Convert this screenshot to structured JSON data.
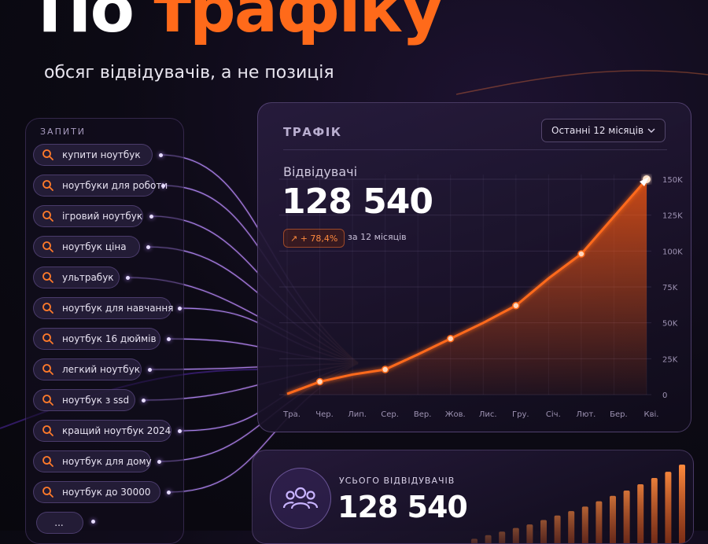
{
  "hero": {
    "title_white": "По",
    "title_orange": "трафіку",
    "subtitle": "обсяг відвідувачів, а не позиція"
  },
  "queries": {
    "title": "ЗАПИТИ",
    "items": [
      "купити ноутбук",
      "ноутбуки для роботи",
      "ігровий ноутбук",
      "ноутбук ціна",
      "ультрабук",
      "ноутбук для навчання",
      "ноутбук 16 дюймів",
      "легкий ноутбук",
      "ноутбук з ssd",
      "кращий ноутбук 2024",
      "ноутбук для дому",
      "ноутбук до 30000"
    ],
    "more": "..."
  },
  "traffic": {
    "title": "ТРАФІК",
    "range": "Останні 12 місяців",
    "visitors_label": "Відвідувачі",
    "visitors_value": "128 540",
    "growth": "↗ + 78,4%",
    "growth_period": "за 12 місяців"
  },
  "chart_data": {
    "type": "area",
    "categories": [
      "Тра.",
      "Чер.",
      "Лип.",
      "Сер.",
      "Вер.",
      "Жов.",
      "Лис.",
      "Гру.",
      "Січ.",
      "Лют.",
      "Бер.",
      "Кві."
    ],
    "values": [
      500,
      9000,
      14000,
      17500,
      28000,
      39000,
      50000,
      62000,
      81000,
      98000,
      124000,
      150000
    ],
    "y_ticks": [
      "0",
      "25K",
      "50K",
      "75K",
      "100K",
      "125K",
      "150K"
    ],
    "ylim": [
      0,
      150000
    ],
    "color": "#ff6a1a"
  },
  "total": {
    "label": "УСЬОГО ВІДВІДУВАЧІВ",
    "value": "128 540",
    "bars": [
      5,
      9,
      13,
      17,
      21,
      26,
      31,
      36,
      41,
      47,
      53,
      59,
      66,
      73,
      80,
      88
    ]
  },
  "colors": {
    "accent": "#ff6a1a",
    "purple": "#9b5cff"
  }
}
